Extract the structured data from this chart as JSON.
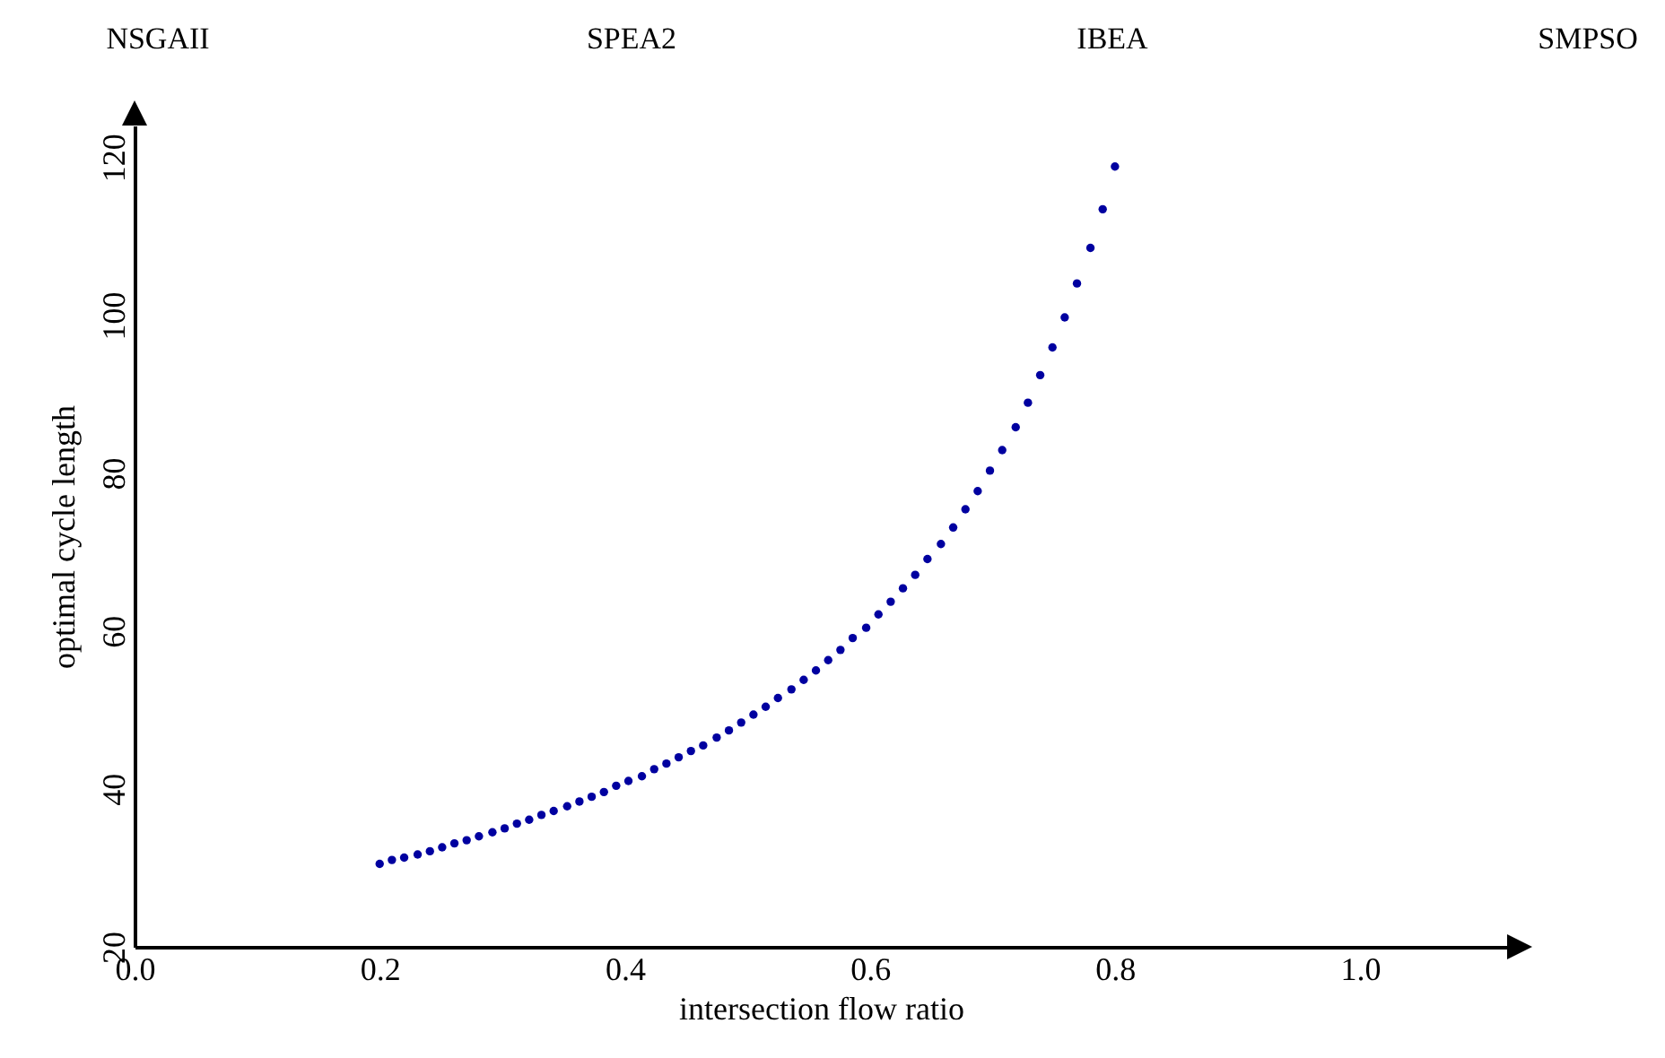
{
  "chart_data": {
    "type": "scatter",
    "xlabel": "intersection flow ratio",
    "ylabel": "optimal cycle length",
    "annotations": [
      "NSGAII",
      "SPEA2",
      "IBEA",
      "SMPSO"
    ],
    "x": [
      0.2,
      0.21,
      0.22,
      0.231,
      0.241,
      0.251,
      0.261,
      0.271,
      0.281,
      0.292,
      0.302,
      0.312,
      0.322,
      0.332,
      0.342,
      0.353,
      0.363,
      0.373,
      0.383,
      0.393,
      0.403,
      0.414,
      0.424,
      0.434,
      0.444,
      0.454,
      0.464,
      0.475,
      0.485,
      0.495,
      0.505,
      0.515,
      0.525,
      0.536,
      0.546,
      0.556,
      0.566,
      0.576,
      0.586,
      0.597,
      0.607,
      0.617,
      0.627,
      0.637,
      0.647,
      0.658,
      0.668,
      0.678,
      0.688,
      0.698,
      0.708,
      0.719,
      0.729,
      0.739,
      0.749,
      0.759,
      0.769,
      0.78,
      0.79,
      0.8
    ],
    "series": [
      {
        "color": "#0000a0",
        "values": [
          30.5,
          31.0,
          31.3,
          31.7,
          32.1,
          32.6,
          33.1,
          33.5,
          34.0,
          34.5,
          35.0,
          35.6,
          36.1,
          36.7,
          37.2,
          37.8,
          38.4,
          39.0,
          39.6,
          40.4,
          41.0,
          41.6,
          42.5,
          43.2,
          44.0,
          44.8,
          45.5,
          46.5,
          47.4,
          48.4,
          49.4,
          50.4,
          51.5,
          52.6,
          53.8,
          55.0,
          56.3,
          57.6,
          59.1,
          60.4,
          62.1,
          63.7,
          65.4,
          67.1,
          69.1,
          71.0,
          73.1,
          75.4,
          77.7,
          80.3,
          82.9,
          85.8,
          88.9,
          92.4,
          95.9,
          99.7,
          104.0,
          108.5,
          113.4,
          118.8
        ]
      }
    ],
    "xlim": [
      0,
      1.12
    ],
    "ylim": [
      20,
      124
    ],
    "xticks": [
      {
        "value": 0,
        "label": "0.0"
      },
      0.2,
      0.4,
      0.6,
      0.8,
      {
        "value": 1,
        "label": "1.0"
      }
    ],
    "yticks": [
      20,
      40,
      60,
      80,
      100,
      120
    ],
    "grid": false,
    "marker": "circle"
  }
}
